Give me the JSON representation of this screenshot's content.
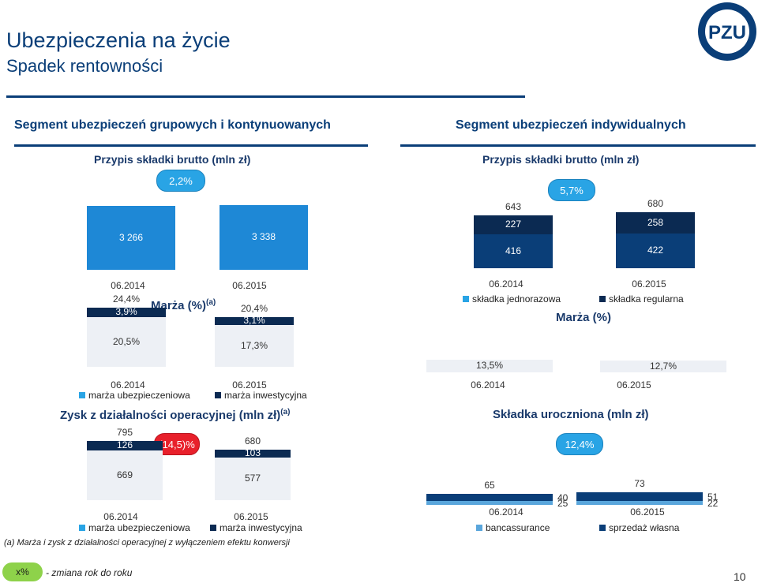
{
  "header": {
    "title": "Ubezpieczenia na życie",
    "subtitle": "Spadek rentowności",
    "logo_text": "PZU",
    "page_number": "10"
  },
  "colors": {
    "navy": "#0a3e78",
    "dark_navy": "#0b2a52",
    "light_blue": "#29a4e5",
    "band": "#edf0f5",
    "red": "#e8202b",
    "green": "#8ed24a"
  },
  "left": {
    "segment_title": "Segment ubezpieczeń grupowych i kontynuowanych",
    "premium": {
      "title": "Przypis składki brutto (mln zł)",
      "change": "2,2%",
      "chart_data": {
        "type": "bar",
        "categories": [
          "06.2014",
          "06.2015"
        ],
        "values": [
          3266,
          3338
        ],
        "value_labels": [
          "3 266",
          "3 338"
        ]
      }
    },
    "margin": {
      "title": "Marża (%)",
      "title_sup": "(a)",
      "chart_data": {
        "type": "bar",
        "stacked": true,
        "categories": [
          "06.2014",
          "06.2015"
        ],
        "series": [
          {
            "name": "marża ubezpieczeniowa",
            "values": [
              20.5,
              17.3
            ],
            "labels": [
              "20,5%",
              "17,3%"
            ],
            "color": "#edf0f5"
          },
          {
            "name": "marża inwestycyjna",
            "values": [
              3.9,
              3.1
            ],
            "labels": [
              "3,9%",
              "3,1%"
            ],
            "color": "#0b2a52"
          }
        ],
        "totals": [
          24.4,
          20.4
        ],
        "total_labels": [
          "24,4%",
          "20,4%"
        ]
      }
    },
    "profit": {
      "title": "Zysk z działalności operacyjnej (mln zł)",
      "title_sup": "(a)",
      "change": "(14,5)%",
      "chart_data": {
        "type": "bar",
        "stacked": true,
        "categories": [
          "06.2014",
          "06.2015"
        ],
        "series": [
          {
            "name": "marża ubezpieczeniowa",
            "values": [
              669,
              577
            ],
            "labels": [
              "669",
              "577"
            ],
            "color": "#edf0f5"
          },
          {
            "name": "marża inwestycyjna",
            "values": [
              126,
              103
            ],
            "labels": [
              "126",
              "103"
            ],
            "color": "#0b2a52"
          }
        ],
        "totals": [
          795,
          680
        ],
        "total_labels": [
          "795",
          "680"
        ]
      }
    },
    "footnote": "(a) Marża i zysk z działalności operacyjnej z wyłączeniem efektu konwersji"
  },
  "right": {
    "segment_title": "Segment ubezpieczeń indywidualnych",
    "premium": {
      "title": "Przypis składki brutto (mln zł)",
      "change": "5,7%",
      "chart_data": {
        "type": "bar",
        "stacked": true,
        "categories": [
          "06.2014",
          "06.2015"
        ],
        "series": [
          {
            "name": "składka jednorazowa",
            "values": [
              416,
              422
            ],
            "labels": [
              "416",
              "422"
            ],
            "color": "#0a3e78"
          },
          {
            "name": "składka regularna",
            "values": [
              227,
              258
            ],
            "labels": [
              "227",
              "258"
            ],
            "color": "#0b2a52"
          }
        ],
        "totals": [
          643,
          680
        ],
        "total_labels": [
          "643",
          "680"
        ]
      }
    },
    "margin": {
      "title": "Marża (%)",
      "chart_data": {
        "type": "bar",
        "categories": [
          "06.2014",
          "06.2015"
        ],
        "values": [
          13.5,
          12.7
        ],
        "value_labels": [
          "13,5%",
          "12,7%"
        ]
      }
    },
    "earned": {
      "title": "Składka uroczniona (mln zł)",
      "change": "12,4%",
      "chart_data": {
        "type": "bar",
        "stacked": true,
        "categories": [
          "06.2014",
          "06.2015"
        ],
        "series": [
          {
            "name": "bancassurance",
            "values": [
              25,
              22
            ],
            "labels": [
              "25",
              "22"
            ],
            "color": "#5aa6dc"
          },
          {
            "name": "sprzedaż własna",
            "values": [
              40,
              51
            ],
            "labels": [
              "40",
              "51"
            ],
            "color": "#0a3e78"
          }
        ],
        "totals": [
          65,
          73
        ],
        "total_labels": [
          "65",
          "73"
        ]
      }
    }
  },
  "legend_note": {
    "marker": "x%",
    "text": "- zmiana rok do roku"
  }
}
